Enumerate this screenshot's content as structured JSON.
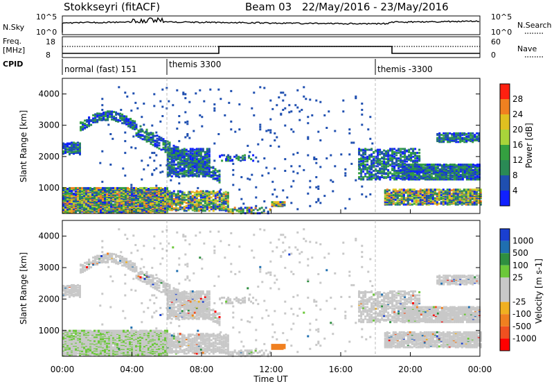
{
  "header": {
    "station": "Stokkseyri (fitACF)",
    "beam": "Beam 03",
    "date_range": "22/May/2016 - 23/May/2016"
  },
  "noise_panel": {
    "left_label": "N.Sky",
    "right_label": "N.Search",
    "left_ticks": [
      "10^5",
      "10^0"
    ],
    "right_ticks": [
      "10^5",
      "10^0"
    ]
  },
  "freq_panel": {
    "left_label_line1": "Freq.",
    "left_label_line2": "[MHz]",
    "left_ticks": [
      "18",
      "8"
    ],
    "right_label": "Nave",
    "right_ticks": [
      "60",
      "0"
    ]
  },
  "cpid": {
    "label": "CPID",
    "segments": [
      {
        "name": "normal (fast) 151",
        "start_hour": 0
      },
      {
        "name": "themis 3300",
        "start_hour": 6
      },
      {
        "name": "themis -3300",
        "start_hour": 18
      }
    ]
  },
  "colors": {
    "power_scale": [
      "#1020ff",
      "#1f4fb0",
      "#2a8a55",
      "#34a040",
      "#a8d43a",
      "#e0c020",
      "#f08020",
      "#ff2010"
    ],
    "velocity_scale": [
      "#1a3fd0",
      "#1f6fb0",
      "#2f8f40",
      "#6cc83a",
      "#c8c8c8",
      "#c8c8c8",
      "#f0b020",
      "#f08020",
      "#f05020",
      "#ff0000"
    ]
  },
  "chart_data": [
    {
      "type": "heatmap",
      "name": "power",
      "ylabel": "Slant Range [km]",
      "yticks": [
        1000,
        2000,
        3000,
        4000
      ],
      "ylim": [
        180,
        4500
      ],
      "xlim_hours": [
        0,
        24
      ],
      "colorbar_label": "Power [dB]",
      "colorbar_ticks": [
        "4",
        "8",
        "12",
        "16",
        "20",
        "24",
        "28"
      ],
      "colorbar_range": [
        0,
        30
      ],
      "vertical_markers_hours": [
        6,
        18
      ]
    },
    {
      "type": "heatmap",
      "name": "velocity",
      "ylabel": "Slant Range [km]",
      "yticks": [
        1000,
        2000,
        3000,
        4000
      ],
      "ylim": [
        180,
        4500
      ],
      "xlim_hours": [
        0,
        24
      ],
      "xlabel": "Time UT",
      "xtick_labels": [
        "00:00",
        "04:00",
        "08:00",
        "12:00",
        "16:00",
        "20:00",
        "00:00"
      ],
      "colorbar_label": "Velocity [m s-1]",
      "colorbar_ticks": [
        "1000",
        "500",
        "100",
        "25",
        "-25",
        "-100",
        "-500",
        "-1000"
      ],
      "vertical_markers_hours": [
        6,
        18
      ]
    }
  ]
}
